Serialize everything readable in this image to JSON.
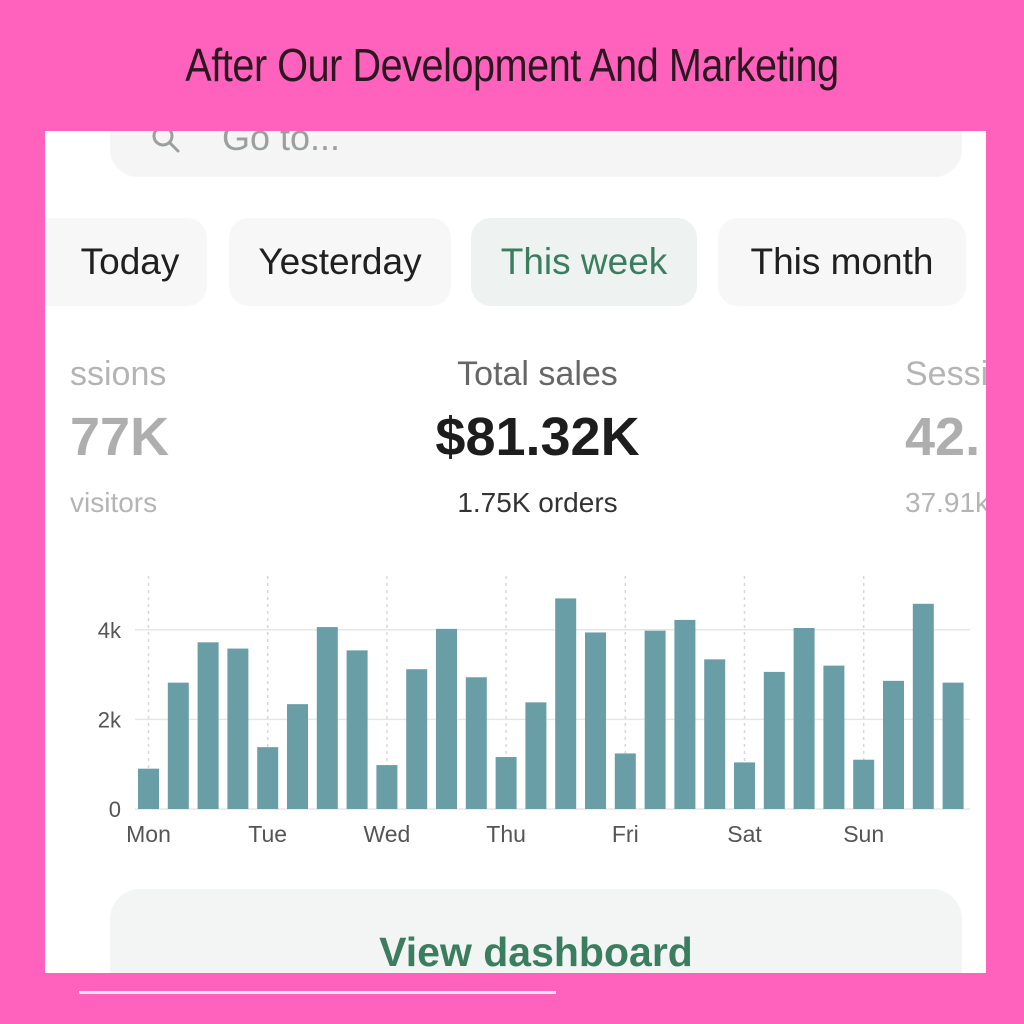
{
  "headline": "After Our Development And Marketing",
  "search": {
    "placeholder": "Go to..."
  },
  "tabs": [
    {
      "label": "Today",
      "active": false
    },
    {
      "label": "Yesterday",
      "active": false
    },
    {
      "label": "This week",
      "active": true
    },
    {
      "label": "This month",
      "active": false
    }
  ],
  "stats": {
    "left": {
      "label": "ssions",
      "value": "77K",
      "sub": "visitors"
    },
    "center": {
      "label": "Total sales",
      "value": "$81.32K",
      "sub": "1.75K orders"
    },
    "right": {
      "label": "Sessi",
      "value": "42.",
      "sub": "37.91k"
    }
  },
  "chart_data": {
    "type": "bar",
    "x_tick_labels": [
      "Mon",
      "Tue",
      "Wed",
      "Thu",
      "Fri",
      "Sat",
      "Sun"
    ],
    "y_tick_labels": [
      "0",
      "2k",
      "4k"
    ],
    "ylim": [
      0,
      5200
    ],
    "color": "#6a9ea6",
    "values": [
      900,
      2820,
      3720,
      3580,
      1380,
      2340,
      4060,
      3540,
      980,
      3120,
      4020,
      2940,
      1160,
      2380,
      4700,
      3940,
      1240,
      3980,
      4220,
      3340,
      1040,
      3060,
      4040,
      3200,
      1100,
      2860,
      4580,
      2820
    ]
  },
  "dashboard_button": {
    "label": "View dashboard"
  },
  "colors": {
    "background": "#ff62bd",
    "accent": "#3b7d5f",
    "bar": "#6a9ea6"
  }
}
